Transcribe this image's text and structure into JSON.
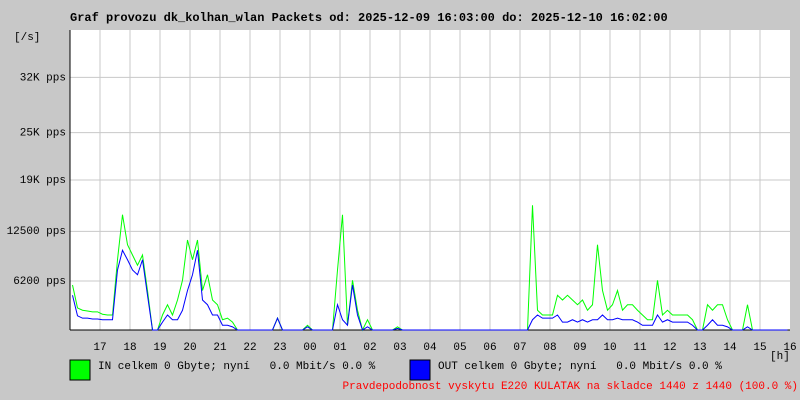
{
  "chart_data": {
    "type": "line",
    "title": "Graf provozu dk_kolhan_wlan Packets od: 2025-12-09 16:03:00 do: 2025-12-10 16:02:00",
    "y_unit": "[/s]",
    "x_unit": "[h]",
    "x_labels": [
      "17",
      "18",
      "19",
      "20",
      "21",
      "22",
      "23",
      "00",
      "01",
      "02",
      "03",
      "04",
      "05",
      "06",
      "07",
      "08",
      "09",
      "10",
      "11",
      "12",
      "13",
      "14",
      "15",
      "16"
    ],
    "ylim": [
      0,
      38000
    ],
    "yticks": [
      {
        "value": 6200,
        "label": "6200 pps"
      },
      {
        "value": 12500,
        "label": "12500 pps"
      },
      {
        "value": 19000,
        "label": "19K pps"
      },
      {
        "value": 25000,
        "label": "25K pps"
      },
      {
        "value": 32000,
        "label": "32K pps"
      }
    ],
    "grid": true,
    "series": [
      {
        "name": "IN celkem 0 Gbyte; nyní   0.0 Mbit/s 0.0 %",
        "color": "#00ff00",
        "values": [
          5700,
          2800,
          2500,
          2400,
          2300,
          2300,
          2000,
          1900,
          1900,
          8900,
          14600,
          10800,
          9500,
          8200,
          9500,
          5000,
          0,
          0,
          1900,
          3200,
          1900,
          3800,
          6300,
          11400,
          8900,
          11400,
          5000,
          7000,
          3800,
          3200,
          1300,
          1500,
          1000,
          0,
          0,
          0,
          0,
          0,
          0,
          0,
          0,
          1500,
          0,
          0,
          0,
          0,
          0,
          600,
          0,
          0,
          0,
          0,
          0,
          7600,
          14600,
          600,
          6300,
          2500,
          0,
          1300,
          0,
          0,
          0,
          0,
          0,
          400,
          0,
          0,
          0,
          0,
          0,
          0,
          0,
          0,
          0,
          0,
          0,
          0,
          0,
          0,
          0,
          0,
          0,
          0,
          0,
          0,
          0,
          0,
          0,
          0,
          0,
          0,
          15800,
          2500,
          1900,
          1900,
          1900,
          4400,
          3800,
          4400,
          3800,
          3200,
          3800,
          2500,
          3200,
          10800,
          5000,
          2500,
          3200,
          5000,
          2500,
          3200,
          3200,
          2500,
          1900,
          1300,
          1300,
          6300,
          1900,
          2500,
          1900,
          1900,
          1900,
          1900,
          1300,
          0,
          0,
          3200,
          2500,
          3200,
          3200,
          1300,
          0,
          0,
          0,
          3200,
          0,
          0,
          0,
          0,
          0,
          0,
          0,
          0
        ]
      },
      {
        "name": "OUT celkem 0 Gbyte; nyní   0.0 Mbit/s 0.0 %",
        "color": "#0000ff",
        "values": [
          4400,
          1800,
          1500,
          1500,
          1400,
          1400,
          1300,
          1300,
          1300,
          7600,
          10100,
          8900,
          7600,
          7000,
          8900,
          4400,
          0,
          0,
          1000,
          1900,
          1300,
          1300,
          2500,
          5000,
          7000,
          10100,
          3800,
          3200,
          1900,
          1900,
          600,
          600,
          400,
          0,
          0,
          0,
          0,
          0,
          0,
          0,
          0,
          1500,
          0,
          0,
          0,
          0,
          0,
          400,
          0,
          0,
          0,
          0,
          0,
          3200,
          1300,
          600,
          5700,
          1900,
          0,
          400,
          0,
          0,
          0,
          0,
          0,
          200,
          0,
          0,
          0,
          0,
          0,
          0,
          0,
          0,
          0,
          0,
          0,
          0,
          0,
          0,
          0,
          0,
          0,
          0,
          0,
          0,
          0,
          0,
          0,
          0,
          0,
          0,
          1300,
          1900,
          1500,
          1500,
          1500,
          1900,
          1000,
          1000,
          1300,
          1000,
          1300,
          1000,
          1300,
          1300,
          1900,
          1300,
          1300,
          1500,
          1300,
          1300,
          1300,
          1000,
          600,
          600,
          600,
          1900,
          1000,
          1300,
          1000,
          1000,
          1000,
          1000,
          600,
          0,
          0,
          600,
          1300,
          600,
          600,
          400,
          0,
          0,
          0,
          400,
          0,
          0,
          0,
          0,
          0,
          0,
          0,
          0
        ]
      }
    ],
    "footer": "Pravdepodobnost vyskytu E220 KULATAK na skladce 1440 z 1440 (100.0 %)"
  }
}
